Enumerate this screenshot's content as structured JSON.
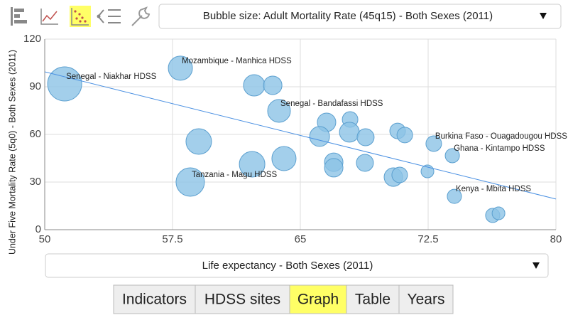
{
  "toolbar": {
    "bubble_size_select": "Bubble size: Adult Mortality Rate (45q15) - Both Sexes (2011)"
  },
  "chart_data": {
    "type": "bubble",
    "y_label": "Under Five Mortality Rate (5q0) - Both Sexes (2011)",
    "xlim": [
      50,
      80
    ],
    "xticks": [
      50,
      57.5,
      65,
      72.5,
      80
    ],
    "ylim": [
      0,
      120
    ],
    "yticks": [
      0,
      30,
      60,
      90,
      120
    ],
    "grid": true,
    "color": "#8cc3e6",
    "stroke": "#5b9fcf",
    "labels": [
      "Senegal - Niakhar HDSS",
      "Mozambique - Manhica HDSS",
      null,
      null,
      "Senegal - Bandafassi HDSS",
      null,
      null,
      null,
      null,
      null,
      null,
      null,
      "Burkina Faso - Ouagadougou HDSS",
      "Ghana - Kintampo HDSS",
      null,
      null,
      null,
      null,
      null,
      null,
      null,
      null,
      null,
      "Tanzania - Magu HDSS",
      "Kenya - Mbita HDSS",
      null,
      null
    ],
    "x": [
      51.17,
      57.96,
      62.29,
      63.38,
      63.75,
      66.54,
      67.92,
      66.13,
      67.88,
      68.83,
      70.71,
      71.13,
      72.83,
      73.92,
      59.04,
      62.17,
      64.04,
      66.96,
      66.96,
      68.79,
      70.46,
      70.83,
      72.46,
      58.54,
      74.04,
      76.29,
      76.63
    ],
    "values": [
      91.8,
      101.7,
      90.9,
      90.9,
      74.8,
      67.6,
      69.4,
      58.7,
      61.4,
      58.2,
      62.2,
      59.6,
      54.2,
      46.6,
      55.5,
      41.2,
      44.8,
      42.5,
      39.0,
      42.1,
      33.1,
      34.5,
      36.7,
      30.0,
      21.0,
      9.0,
      10.3
    ],
    "sizes": [
      476,
      239,
      186,
      140,
      212,
      140,
      100,
      162,
      162,
      119,
      100,
      100,
      100,
      83,
      268,
      268,
      239,
      140,
      140,
      119,
      140,
      100,
      67,
      331,
      83,
      83,
      67
    ],
    "trendline": {
      "x": [
        50,
        80
      ],
      "y": [
        99.4,
        19.3
      ],
      "color": "#4a90e2"
    }
  },
  "x_axis_select": "Life expectancy - Both Sexes  (2011)",
  "tabs": [
    "Indicators",
    "HDSS sites",
    "Graph",
    "Table",
    "Years"
  ]
}
